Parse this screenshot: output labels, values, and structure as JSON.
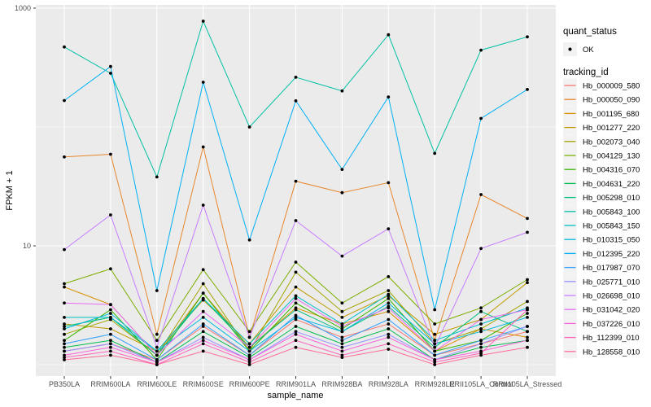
{
  "colors": {
    "page_bg": "#FFFFFF",
    "panel_bg": "#EBEBEB",
    "gridline": "#FFFFFF",
    "point": "#000000",
    "tick": "#333333",
    "tick_text": "#4D4D4D",
    "legend_key_bg": "#F2F2F2"
  },
  "chart_data": {
    "type": "line",
    "title": "",
    "xlabel": "sample_name",
    "ylabel": "FPKM + 1",
    "y_scale": "log10",
    "ylim": [
      0.93,
      1070
    ],
    "grid": "major-white-on-grey, minor at 1 and 100",
    "legend_position": "right",
    "y_ticks": [
      {
        "label": "1000",
        "value": 1000
      },
      {
        "label": "10",
        "value": 10
      }
    ],
    "y_major_gridlines": [
      10,
      1000
    ],
    "y_minor_gridlines": [
      1,
      100
    ],
    "categories": [
      "PB350LA",
      "RRIM600LA",
      "RRIM600LE",
      "RRIM600SE",
      "RRIM600PE",
      "RRIM901LA",
      "RRIM928BA",
      "RRIM928LA",
      "RRIM928LE",
      "RRII105LA_Control",
      "RRII105LA_Stressed"
    ],
    "legend": {
      "quant_status_title": "quant_status",
      "ok_label": "OK",
      "tracking_id_title": "tracking_id"
    },
    "point_style": "small black dot on every sample for every series (quant_status = OK)",
    "series": [
      {
        "name": "Hb_000009_580",
        "color": "#F8766D",
        "values": [
          1.3,
          1.5,
          1.1,
          2.1,
          1.2,
          2.4,
          1.7,
          2.2,
          1.2,
          1.5,
          1.9
        ]
      },
      {
        "name": "Hb_000050_090",
        "color": "#E8862B",
        "values": [
          56,
          59,
          1.8,
          68,
          1.7,
          35,
          28,
          34,
          1.6,
          27,
          17
        ]
      },
      {
        "name": "Hb_001195_680",
        "color": "#D89000",
        "values": [
          4.5,
          3.2,
          1.2,
          4.0,
          1.4,
          3.0,
          2.2,
          2.8,
          1.3,
          2.0,
          1.7
        ]
      },
      {
        "name": "Hb_001277_220",
        "color": "#C09B00",
        "values": [
          2.2,
          2.0,
          1.3,
          3.5,
          1.5,
          4.5,
          2.5,
          3.8,
          1.8,
          2.4,
          4.9
        ]
      },
      {
        "name": "Hb_002073_040",
        "color": "#A3A500",
        "values": [
          1.8,
          2.4,
          1.2,
          4.8,
          1.3,
          6.0,
          2.8,
          4.2,
          1.5,
          2.0,
          3.4
        ]
      },
      {
        "name": "Hb_004129_130",
        "color": "#7CAE00",
        "values": [
          4.8,
          6.4,
          1.6,
          6.3,
          1.9,
          7.3,
          3.3,
          5.5,
          2.2,
          3.0,
          5.2
        ]
      },
      {
        "name": "Hb_004316_070",
        "color": "#39B600",
        "values": [
          1.6,
          2.9,
          1.1,
          4.0,
          1.3,
          3.3,
          2.0,
          3.6,
          1.3,
          1.6,
          2.7
        ]
      },
      {
        "name": "Hb_004631_220",
        "color": "#00BB4E",
        "values": [
          1.4,
          1.6,
          1.05,
          1.9,
          1.15,
          2.1,
          1.5,
          2.0,
          1.1,
          1.4,
          1.6
        ]
      },
      {
        "name": "Hb_005298_010",
        "color": "#00BF7D",
        "values": [
          2.1,
          2.5,
          1.2,
          3.6,
          1.4,
          2.9,
          1.9,
          3.1,
          1.4,
          2.8,
          1.9
        ]
      },
      {
        "name": "Hb_005843_100",
        "color": "#00C1A3",
        "values": [
          471,
          283,
          38,
          777,
          100,
          262,
          201,
          597,
          60,
          443,
          573
        ]
      },
      {
        "name": "Hb_005843_150",
        "color": "#00BFC4",
        "values": [
          2.5,
          2.5,
          1.3,
          3.6,
          1.5,
          3.8,
          2.2,
          3.9,
          1.6,
          2.2,
          3.0
        ]
      },
      {
        "name": "Hb_010315_050",
        "color": "#00BADE",
        "values": [
          2.0,
          2.7,
          1.3,
          2.5,
          1.3,
          2.5,
          1.9,
          3.3,
          1.5,
          1.9,
          2.5
        ]
      },
      {
        "name": "Hb_012395_220",
        "color": "#00B0F6",
        "values": [
          167,
          323,
          4.2,
          238,
          11.2,
          166,
          44,
          179,
          2.9,
          118,
          207
        ]
      },
      {
        "name": "Hb_017987_070",
        "color": "#35A2FF",
        "values": [
          1.5,
          1.8,
          1.1,
          2.2,
          1.2,
          2.6,
          1.6,
          2.4,
          1.2,
          1.6,
          2.1
        ]
      },
      {
        "name": "Hb_025771_010",
        "color": "#9590FF",
        "values": [
          1.3,
          1.5,
          1.05,
          1.7,
          1.1,
          1.9,
          1.4,
          1.8,
          1.1,
          1.5,
          2.1
        ]
      },
      {
        "name": "Hb_026698_010",
        "color": "#C77CFF",
        "values": [
          9.3,
          18.2,
          1.4,
          22,
          1.7,
          16.3,
          8.2,
          13.9,
          1.4,
          9.5,
          13
        ]
      },
      {
        "name": "Hb_031042_020",
        "color": "#E76BF3",
        "values": [
          3.3,
          3.2,
          1.2,
          2.8,
          1.4,
          3.6,
          2.1,
          3.0,
          1.3,
          2.4,
          2.9
        ]
      },
      {
        "name": "Hb_037226_010",
        "color": "#FA62DB",
        "values": [
          1.2,
          1.4,
          1.05,
          1.6,
          1.1,
          1.8,
          1.3,
          1.7,
          1.1,
          1.3,
          1.6
        ]
      },
      {
        "name": "Hb_112399_010",
        "color": "#FF62BC",
        "values": [
          1.15,
          1.3,
          1.0,
          1.5,
          1.05,
          1.6,
          1.2,
          1.5,
          1.05,
          1.25,
          2.9
        ]
      },
      {
        "name": "Hb_128558_010",
        "color": "#FF6A98",
        "values": [
          1.1,
          1.2,
          1.0,
          1.3,
          1.0,
          1.4,
          1.15,
          1.35,
          1.0,
          1.2,
          1.4
        ]
      }
    ]
  }
}
